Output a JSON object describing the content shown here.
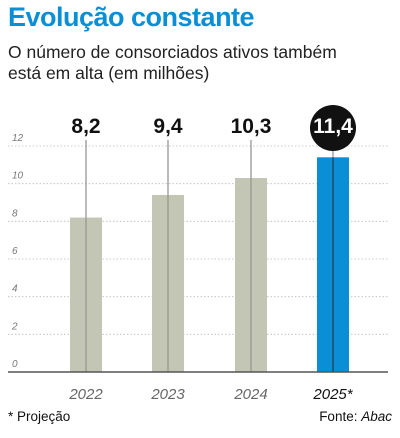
{
  "header": {
    "title": "Evolução constante",
    "subtitle": "O número de consorciados ativos também está em alta (em milhões)"
  },
  "footer": {
    "footnote": "* Projeção",
    "source_label": "Fonte: ",
    "source_name": "Abac"
  },
  "colors": {
    "title": "#0a8fd6",
    "bar": "#c3c5b5",
    "bar_highlight": "#0a8fd6",
    "label_circle": "#111111",
    "label_circle_text": "#ffffff",
    "axis": "#555555",
    "gridline": "#bbbbbb",
    "tick_text": "#777777"
  },
  "chart_data": {
    "type": "bar",
    "categories": [
      "2022",
      "2023",
      "2024",
      "2025*"
    ],
    "values": [
      8.2,
      9.4,
      10.3,
      11.4
    ],
    "value_labels": [
      "8,2",
      "9,4",
      "10,3",
      "11,4"
    ],
    "highlight_index": 3,
    "ylim": [
      0,
      12
    ],
    "yticks": [
      0,
      2,
      4,
      6,
      8,
      10,
      12
    ],
    "ytick_labels": [
      "0",
      "2",
      "4",
      "6",
      "8",
      "10",
      "12"
    ],
    "grid": true,
    "title": "Evolução constante",
    "xlabel": "",
    "ylabel": ""
  }
}
